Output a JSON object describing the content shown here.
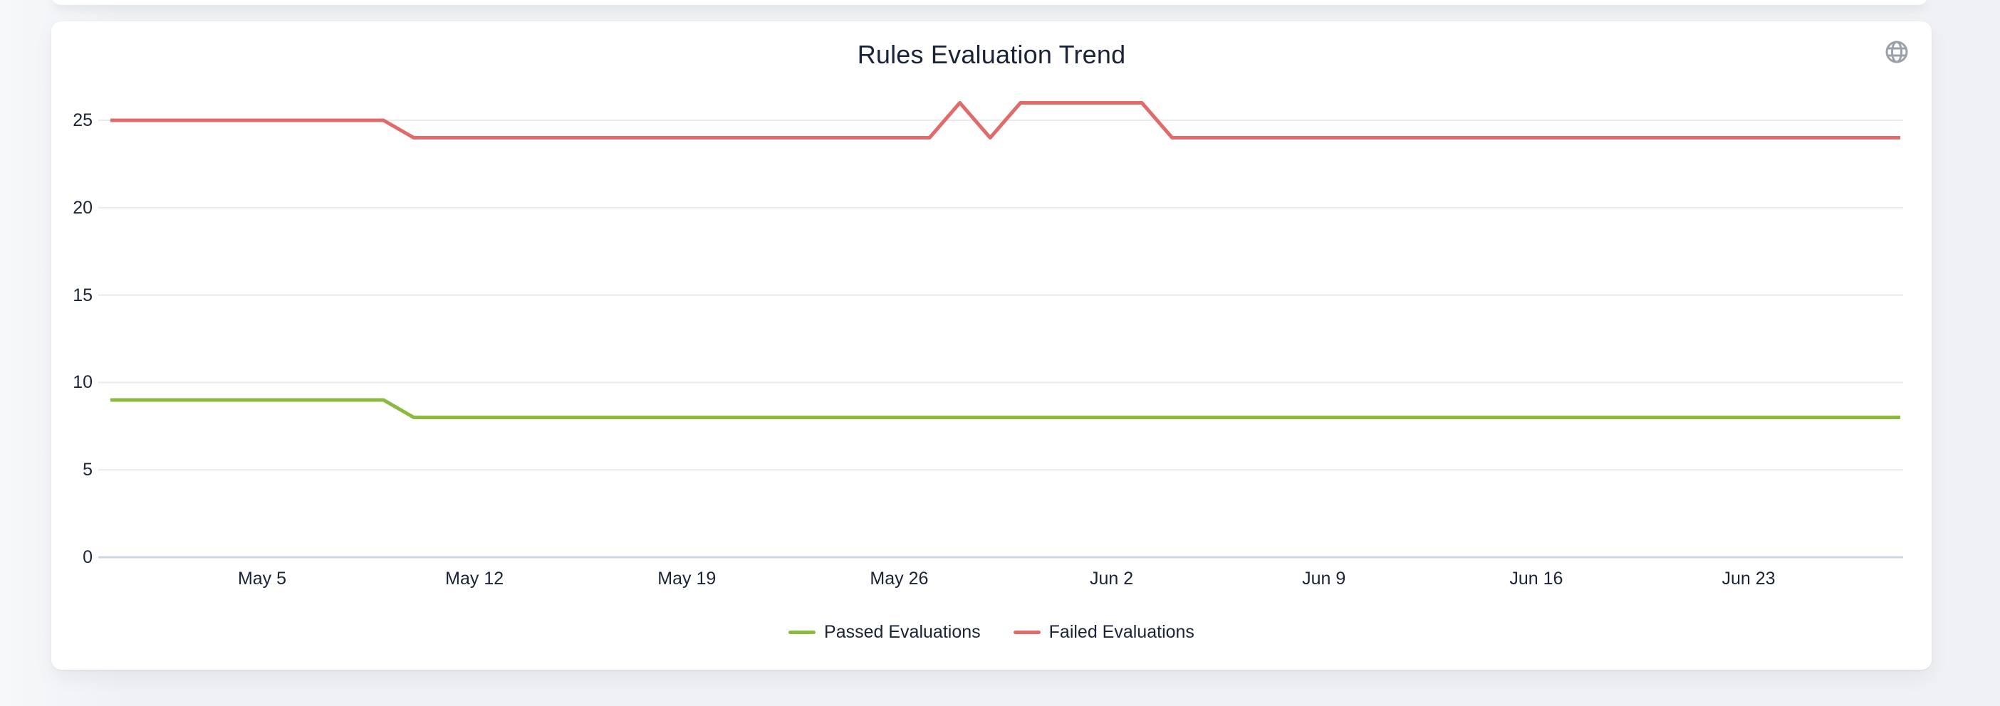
{
  "card": {
    "title": "Rules Evaluation Trend",
    "icons": {
      "globe": {
        "name": "globe-icon",
        "color": "#9aa1ab"
      }
    }
  },
  "colors": {
    "passed_line": "#8cba3e",
    "failed_line": "#e06b6b",
    "gridline": "#e9e9e9",
    "axis_baseline": "#ccd6e4",
    "text": "#1b2437",
    "card_background": "#ffffff",
    "page_background": "#eff1f5"
  },
  "legend": {
    "items": [
      {
        "label": "Passed Evaluations",
        "color": "#8cba3e"
      },
      {
        "label": "Failed Evaluations",
        "color": "#e06b6b"
      }
    ]
  },
  "chart_data": {
    "type": "line",
    "title": "Rules Evaluation Trend",
    "xlabel": "",
    "ylabel": "",
    "grid": "horizontal",
    "legend_position": "bottom",
    "y_ticks": [
      0,
      5,
      10,
      15,
      20,
      25
    ],
    "ylim": [
      0,
      26.5
    ],
    "x_tick_labels": [
      "May 5",
      "May 12",
      "May 19",
      "May 26",
      "Jun 2",
      "Jun 9",
      "Jun 16",
      "Jun 23"
    ],
    "x": [
      "Apr 30",
      "May 1",
      "May 2",
      "May 3",
      "May 4",
      "May 5",
      "May 6",
      "May 7",
      "May 8",
      "May 9",
      "May 10",
      "May 11",
      "May 12",
      "May 13",
      "May 14",
      "May 15",
      "May 16",
      "May 17",
      "May 18",
      "May 19",
      "May 20",
      "May 21",
      "May 22",
      "May 23",
      "May 24",
      "May 25",
      "May 26",
      "May 27",
      "May 28",
      "May 29",
      "May 30",
      "May 31",
      "Jun 1",
      "Jun 2",
      "Jun 3",
      "Jun 4",
      "Jun 5",
      "Jun 6",
      "Jun 7",
      "Jun 8",
      "Jun 9",
      "Jun 10",
      "Jun 11",
      "Jun 12",
      "Jun 13",
      "Jun 14",
      "Jun 15",
      "Jun 16",
      "Jun 17",
      "Jun 18",
      "Jun 19",
      "Jun 20",
      "Jun 21",
      "Jun 22",
      "Jun 23",
      "Jun 24",
      "Jun 25",
      "Jun 26",
      "Jun 27",
      "Jun 28"
    ],
    "series": [
      {
        "name": "Passed Evaluations",
        "color": "#8cba3e",
        "values": [
          9,
          9,
          9,
          9,
          9,
          9,
          9,
          9,
          9,
          9,
          8,
          8,
          8,
          8,
          8,
          8,
          8,
          8,
          8,
          8,
          8,
          8,
          8,
          8,
          8,
          8,
          8,
          8,
          8,
          8,
          8,
          8,
          8,
          8,
          8,
          8,
          8,
          8,
          8,
          8,
          8,
          8,
          8,
          8,
          8,
          8,
          8,
          8,
          8,
          8,
          8,
          8,
          8,
          8,
          8,
          8,
          8,
          8,
          8,
          8
        ]
      },
      {
        "name": "Failed Evaluations",
        "color": "#e06b6b",
        "values": [
          25,
          25,
          25,
          25,
          25,
          25,
          25,
          25,
          25,
          25,
          24,
          24,
          24,
          24,
          24,
          24,
          24,
          24,
          24,
          24,
          24,
          24,
          24,
          24,
          24,
          24,
          24,
          24,
          26,
          24,
          26,
          26,
          26,
          26,
          26,
          24,
          24,
          24,
          24,
          24,
          24,
          24,
          24,
          24,
          24,
          24,
          24,
          24,
          24,
          24,
          24,
          24,
          24,
          24,
          24,
          24,
          24,
          24,
          24,
          24
        ]
      }
    ]
  }
}
